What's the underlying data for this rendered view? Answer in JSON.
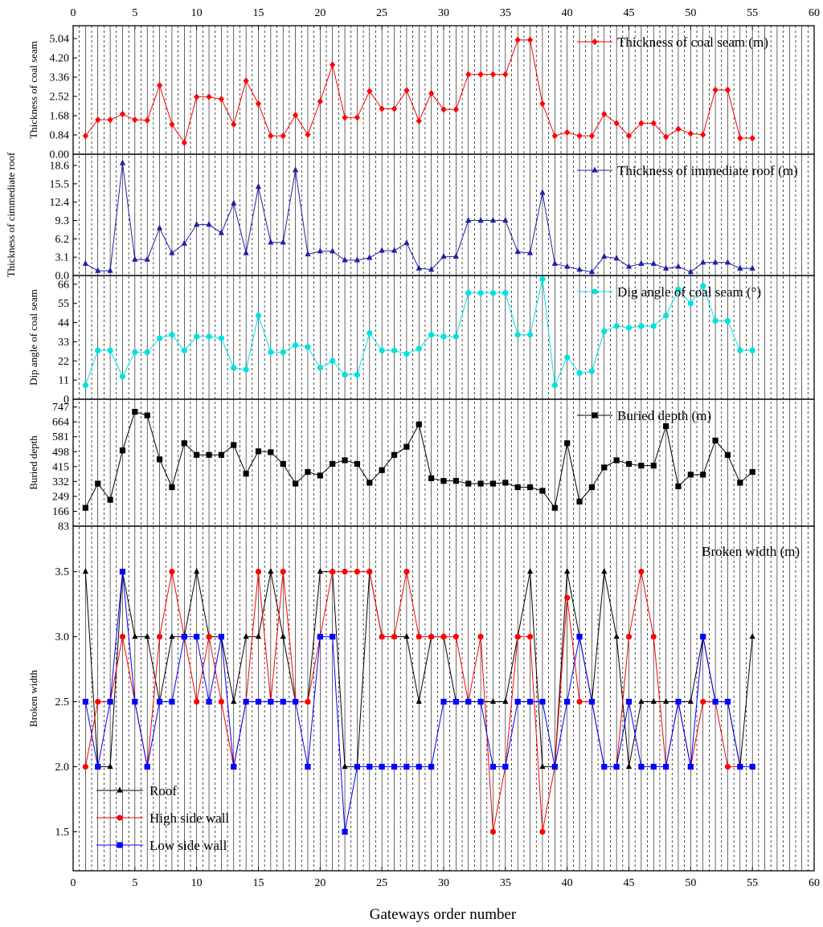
{
  "chart_data": {
    "type": "line",
    "xlabel": "Gateways order number",
    "xlim": [
      0,
      60
    ],
    "xticks": [
      0,
      5,
      10,
      15,
      20,
      25,
      30,
      35,
      40,
      45,
      50,
      55,
      60
    ],
    "grid": "vertical solid lines at major ticks, dashed lines between",
    "panels": [
      {
        "key": "coal",
        "ylabel": "Thickness of coal seam",
        "ylim": [
          0,
          5.6
        ],
        "yticks": [
          "0.00",
          "0.84",
          "1.68",
          "2.52",
          "3.36",
          "4.20",
          "5.04"
        ],
        "legend_placement": "top-right",
        "series": [
          {
            "name": "Thickness of coal seam (m)",
            "color": "#ff0000",
            "marker": "diamond",
            "values": [
              0.8,
              1.5,
              1.5,
              1.75,
              1.5,
              1.48,
              3.0,
              1.3,
              0.5,
              2.5,
              2.5,
              2.4,
              1.3,
              3.2,
              2.2,
              0.8,
              0.8,
              1.7,
              0.85,
              2.3,
              3.9,
              1.6,
              1.6,
              2.75,
              1.98,
              1.98,
              2.78,
              1.45,
              2.65,
              1.95,
              1.95,
              3.48,
              3.48,
              3.48,
              3.48,
              4.98,
              4.98,
              2.2,
              0.8,
              0.95,
              0.8,
              0.8,
              1.75,
              1.35,
              0.8,
              1.35,
              1.35,
              0.75,
              1.1,
              0.9,
              0.85,
              2.8,
              2.8,
              0.7,
              0.7
            ]
          }
        ]
      },
      {
        "key": "roof",
        "ylabel": "Thickness of cimmediate roof",
        "ylim": [
          0,
          20.5
        ],
        "yticks": [
          "0.0",
          "3.1",
          "6.2",
          "9.3",
          "12.4",
          "15.5",
          "18.6"
        ],
        "legend_placement": "top-right",
        "series": [
          {
            "name": "Thickness of immediate roof (m)",
            "color": "#1f1fa8",
            "marker": "triangle",
            "values": [
              2.0,
              0.8,
              0.8,
              19.0,
              2.7,
              2.7,
              8.0,
              3.8,
              5.4,
              8.6,
              8.6,
              7.2,
              12.2,
              3.8,
              15.0,
              5.6,
              5.6,
              17.8,
              3.6,
              4.1,
              4.1,
              2.6,
              2.6,
              3.0,
              4.2,
              4.2,
              5.5,
              1.2,
              1.0,
              3.2,
              3.2,
              9.3,
              9.3,
              9.3,
              9.3,
              4.0,
              3.8,
              14.0,
              2.0,
              1.5,
              1.0,
              0.6,
              3.2,
              2.9,
              1.5,
              2.0,
              2.0,
              1.2,
              1.5,
              0.6,
              2.2,
              2.2,
              2.2,
              1.2,
              1.2
            ]
          }
        ]
      },
      {
        "key": "dip",
        "ylabel": "Dip angle of coal seam",
        "ylim": [
          0,
          71
        ],
        "yticks": [
          "0",
          "11",
          "22",
          "33",
          "44",
          "55",
          "66"
        ],
        "legend_placement": "top-right",
        "series": [
          {
            "name": "Dig angle of coal seam (°)",
            "color": "#00e1e1",
            "marker": "circle",
            "values": [
              8,
              28,
              28,
              13,
              27,
              27,
              35,
              37,
              28,
              36,
              36,
              35,
              18,
              17,
              48,
              27,
              27,
              31,
              30,
              18,
              22,
              14,
              14,
              38,
              28,
              28,
              26,
              29,
              37,
              36,
              36,
              61,
              61,
              61,
              61,
              37,
              37,
              69,
              8,
              24,
              15,
              16,
              39,
              42,
              41,
              42,
              42,
              48,
              63,
              55,
              65,
              45,
              45,
              28,
              28
            ]
          }
        ]
      },
      {
        "key": "depth",
        "ylabel": "Buried depth",
        "ylim": [
          83,
          790
        ],
        "yticks": [
          "83",
          "166",
          "249",
          "332",
          "415",
          "498",
          "581",
          "664",
          "747"
        ],
        "legend_placement": "top-right",
        "series": [
          {
            "name": "Buried depth (m)",
            "color": "#000000",
            "marker": "square",
            "values": [
              185,
              320,
              230,
              505,
              720,
              700,
              455,
              300,
              545,
              480,
              480,
              480,
              535,
              375,
              500,
              495,
              430,
              320,
              385,
              365,
              430,
              450,
              430,
              325,
              395,
              480,
              525,
              650,
              350,
              335,
              335,
              320,
              320,
              320,
              325,
              300,
              300,
              280,
              185,
              545,
              220,
              300,
              410,
              450,
              430,
              420,
              420,
              640,
              305,
              370,
              370,
              560,
              480,
              325,
              385
            ]
          }
        ]
      },
      {
        "key": "broken",
        "ylabel": "Broken width",
        "ylim": [
          1.2,
          3.85
        ],
        "yticks": [
          "1.5",
          "2.0",
          "2.5",
          "3.0",
          "3.5"
        ],
        "title": "Broken width (m)",
        "legend_placement": "bottom-left",
        "series": [
          {
            "name": "Roof",
            "color": "#000000",
            "marker": "triangle",
            "values": [
              3.5,
              2.0,
              2.0,
              3.5,
              3.0,
              3.0,
              2.5,
              3.0,
              3.0,
              3.5,
              3.0,
              3.0,
              2.5,
              3.0,
              3.0,
              3.5,
              3.0,
              2.5,
              2.5,
              3.5,
              3.5,
              2.0,
              2.0,
              3.5,
              3.0,
              3.0,
              3.0,
              2.5,
              3.0,
              3.0,
              2.5,
              2.5,
              2.5,
              2.5,
              2.5,
              3.0,
              3.5,
              2.0,
              2.0,
              3.5,
              3.0,
              2.5,
              3.5,
              3.0,
              2.0,
              2.5,
              2.5,
              2.5,
              2.5,
              2.5,
              3.0,
              2.5,
              2.5,
              2.0,
              3.0
            ]
          },
          {
            "name": "High side wall",
            "color": "#ff0000",
            "marker": "circle",
            "values": [
              2.0,
              2.5,
              2.5,
              3.0,
              2.5,
              2.0,
              3.0,
              3.5,
              3.0,
              2.5,
              3.0,
              2.5,
              2.0,
              2.5,
              3.5,
              2.5,
              3.5,
              2.5,
              2.5,
              3.0,
              3.5,
              3.5,
              3.5,
              3.5,
              3.0,
              3.0,
              3.5,
              3.0,
              3.0,
              3.0,
              3.0,
              2.5,
              3.0,
              1.5,
              2.0,
              3.0,
              3.0,
              1.5,
              2.0,
              3.3,
              2.5,
              2.5,
              2.0,
              2.0,
              3.0,
              3.5,
              3.0,
              2.0,
              2.5,
              2.0,
              2.5,
              2.5,
              2.0,
              2.0,
              2.0
            ]
          },
          {
            "name": "Low side wall",
            "color": "#0000ff",
            "marker": "square",
            "values": [
              2.5,
              2.0,
              2.5,
              3.5,
              2.5,
              2.0,
              2.5,
              2.5,
              3.0,
              3.0,
              2.5,
              3.0,
              2.0,
              2.5,
              2.5,
              2.5,
              2.5,
              2.5,
              2.0,
              3.0,
              3.0,
              1.5,
              2.0,
              2.0,
              2.0,
              2.0,
              2.0,
              2.0,
              2.0,
              2.5,
              2.5,
              2.5,
              2.5,
              2.0,
              2.0,
              2.5,
              2.5,
              2.5,
              2.0,
              2.5,
              3.0,
              2.5,
              2.0,
              2.0,
              2.5,
              2.0,
              2.0,
              2.0,
              2.5,
              2.0,
              3.0,
              2.5,
              2.5,
              2.0,
              2.0
            ]
          }
        ]
      }
    ]
  }
}
